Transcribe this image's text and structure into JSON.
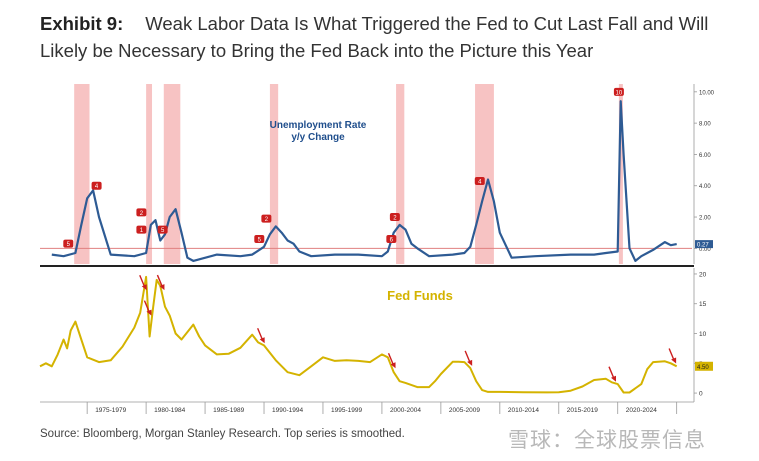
{
  "title": {
    "lead": "Exhibit 9:",
    "text": "Weak Labor Data Is What Triggered the Fed to Cut Last Fall and Will Likely be Necessary to Bring the Fed Back into the Picture this Year"
  },
  "footer": "Source: Bloomberg, Morgan Stanley Research. Top series is smoothed.",
  "watermark": "雪球：全球股票信息",
  "colors": {
    "unemployment": "#2e5b94",
    "fed_funds": "#d4b300",
    "recession": "#f6b8b8",
    "cut_marker": "#cc1f1f",
    "fed_funds_label": "#d4b300",
    "unemployment_label": "#1f4e8c"
  },
  "chart_data": [
    {
      "type": "line",
      "name": "top-panel",
      "label": "Unemployment Rate y/y Change",
      "label_lines": [
        "Unemployment Rate",
        "y/y Change"
      ],
      "ylim": [
        -1,
        10.5
      ],
      "yticks": [
        "10.00",
        "8.00",
        "6.00",
        "4.00",
        "2.00",
        "0.00"
      ],
      "last_value_label": "0.27",
      "reference_line_y": 0,
      "x": [
        1972,
        1973,
        1974,
        1974.5,
        1975,
        1975.5,
        1976,
        1977,
        1979,
        1980,
        1980.4,
        1980.8,
        1981.2,
        1981.6,
        1982,
        1982.5,
        1983,
        1983.5,
        1984,
        1986,
        1988,
        1989,
        1990,
        1990.5,
        1991,
        1991.5,
        1992,
        1992.5,
        1993,
        1994,
        1996,
        1998,
        2000,
        2000.5,
        2001,
        2001.5,
        2002,
        2002.5,
        2003,
        2004,
        2006,
        2007,
        2007.5,
        2008,
        2008.5,
        2009,
        2009.5,
        2010,
        2011,
        2013,
        2016,
        2018,
        2019,
        2020,
        2020.25,
        2020.5,
        2021,
        2021.5,
        2022,
        2023,
        2024,
        2024.5,
        2025
      ],
      "y": [
        -0.4,
        -0.5,
        -0.3,
        1.5,
        3.2,
        3.7,
        2.0,
        -0.4,
        -0.5,
        -0.3,
        1.5,
        1.8,
        0.5,
        0.9,
        2.0,
        2.5,
        1.0,
        -0.6,
        -0.8,
        -0.4,
        -0.5,
        -0.4,
        0.1,
        0.9,
        1.4,
        1.0,
        0.5,
        0.3,
        -0.2,
        -0.5,
        -0.4,
        -0.4,
        -0.5,
        -0.2,
        1.0,
        1.5,
        1.2,
        0.3,
        0.0,
        -0.5,
        -0.4,
        -0.3,
        0.1,
        1.5,
        3.0,
        4.4,
        3.0,
        1.0,
        -0.6,
        -0.5,
        -0.4,
        -0.4,
        -0.3,
        -0.2,
        9.4,
        6.0,
        0.0,
        -0.8,
        -0.5,
        -0.1,
        0.4,
        0.2,
        0.27
      ],
      "marker_labels": [
        {
          "x": 1973.4,
          "y": 0.3,
          "text": "5"
        },
        {
          "x": 1975.8,
          "y": 4.0,
          "text": "4"
        },
        {
          "x": 1979.6,
          "y": 2.3,
          "text": "2"
        },
        {
          "x": 1979.6,
          "y": 1.2,
          "text": "1"
        },
        {
          "x": 1981.4,
          "y": 1.2,
          "text": "5"
        },
        {
          "x": 1989.6,
          "y": 0.6,
          "text": "5"
        },
        {
          "x": 1990.2,
          "y": 1.9,
          "text": "2"
        },
        {
          "x": 2000.8,
          "y": 0.6,
          "text": "6"
        },
        {
          "x": 2001.1,
          "y": 2.0,
          "text": "2"
        },
        {
          "x": 2008.3,
          "y": 4.3,
          "text": "4"
        },
        {
          "x": 2020.1,
          "y": 10.0,
          "text": "10"
        }
      ]
    },
    {
      "type": "line",
      "name": "bottom-panel",
      "label": "Fed Funds",
      "ylim": [
        -1.5,
        21
      ],
      "yticks": [
        "20",
        "15",
        "10",
        "5",
        "0"
      ],
      "last_value_label": "4.50",
      "x": [
        1971,
        1971.5,
        1972,
        1972.5,
        1973,
        1973.3,
        1973.6,
        1974,
        1974.5,
        1975,
        1976,
        1977,
        1978,
        1979,
        1979.5,
        1980,
        1980.3,
        1980.6,
        1980.9,
        1981.2,
        1981.6,
        1982,
        1982.5,
        1983,
        1984,
        1984.5,
        1985,
        1986,
        1987,
        1988,
        1989,
        1989.5,
        1990,
        1991,
        1992,
        1993,
        1994,
        1995,
        1996,
        1997,
        1998,
        1999,
        2000,
        2000.5,
        2001,
        2001.5,
        2002,
        2003,
        2004,
        2004.5,
        2005,
        2006,
        2006.5,
        2007,
        2007.5,
        2008,
        2008.5,
        2009,
        2010,
        2012,
        2014,
        2015,
        2016,
        2017,
        2018,
        2019,
        2019.5,
        2020,
        2020.5,
        2021,
        2022,
        2022.5,
        2023,
        2024,
        2024.5,
        2025
      ],
      "y": [
        4.5,
        5.0,
        4.5,
        6.5,
        9.0,
        7.5,
        10.5,
        12.0,
        9.0,
        6.0,
        5.2,
        5.5,
        7.8,
        11.0,
        13.5,
        19.5,
        9.5,
        14.5,
        19.0,
        18.0,
        14.5,
        13.0,
        10.0,
        9.0,
        11.5,
        9.5,
        8.0,
        6.5,
        6.6,
        7.6,
        9.8,
        8.5,
        8.0,
        5.5,
        3.5,
        3.0,
        4.5,
        6.0,
        5.4,
        5.5,
        5.4,
        5.2,
        6.5,
        6.0,
        3.5,
        2.0,
        1.7,
        1.0,
        1.0,
        2.0,
        3.2,
        5.25,
        5.25,
        5.2,
        4.2,
        2.0,
        0.5,
        0.2,
        0.2,
        0.15,
        0.12,
        0.13,
        0.4,
        1.1,
        2.2,
        2.4,
        1.8,
        1.5,
        0.1,
        0.1,
        1.5,
        4.0,
        5.2,
        5.33,
        5.0,
        4.5
      ],
      "cut_arrows": [
        1979.8,
        1980.2,
        1981.3,
        1989.8,
        2000.9,
        2007.4,
        2019.6,
        2024.7
      ]
    }
  ],
  "recession_bands": [
    [
      1973.9,
      1975.2
    ],
    [
      1980.0,
      1980.5
    ],
    [
      1981.5,
      1982.9
    ],
    [
      1990.5,
      1991.2
    ],
    [
      2001.2,
      2001.9
    ],
    [
      2007.9,
      2009.5
    ],
    [
      2020.1,
      2020.4
    ]
  ],
  "x_axis": {
    "xlim": [
      1971,
      2026.3
    ],
    "ticks": [
      {
        "label": "1975-1979",
        "x": 1977
      },
      {
        "label": "1980-1984",
        "x": 1982
      },
      {
        "label": "1985-1989",
        "x": 1987
      },
      {
        "label": "1990-1994",
        "x": 1992
      },
      {
        "label": "1995-1999",
        "x": 1997
      },
      {
        "label": "2000-2004",
        "x": 2002
      },
      {
        "label": "2005-2009",
        "x": 2007
      },
      {
        "label": "2010-2014",
        "x": 2012
      },
      {
        "label": "2015-2019",
        "x": 2017
      },
      {
        "label": "2020-2024",
        "x": 2022
      }
    ]
  }
}
